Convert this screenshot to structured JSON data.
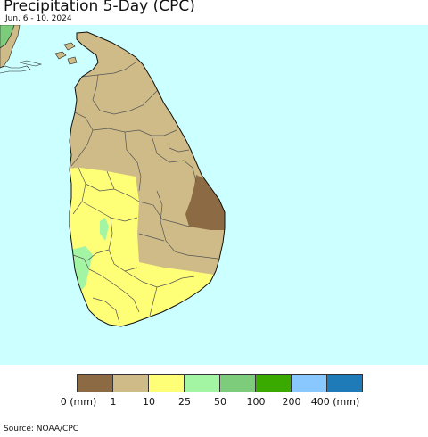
{
  "header": {
    "title": "Precipitation 5-Day (CPC)",
    "date_range": "Jun. 6 - 10, 2024"
  },
  "map": {
    "ocean_color": "#ccffff",
    "region": "Sri Lanka",
    "coast_color": "#000000"
  },
  "legend": {
    "colors": [
      "#8b6a44",
      "#cfbb87",
      "#ffff77",
      "#a3f5a3",
      "#7ccc7c",
      "#3aaa00",
      "#88c8ff",
      "#1f7ab8"
    ],
    "labels": [
      "0 (mm)",
      "1",
      "10",
      "25",
      "50",
      "100",
      "200",
      "400 (mm)"
    ]
  },
  "footer": {
    "source": "Source: NOAA/CPC"
  }
}
